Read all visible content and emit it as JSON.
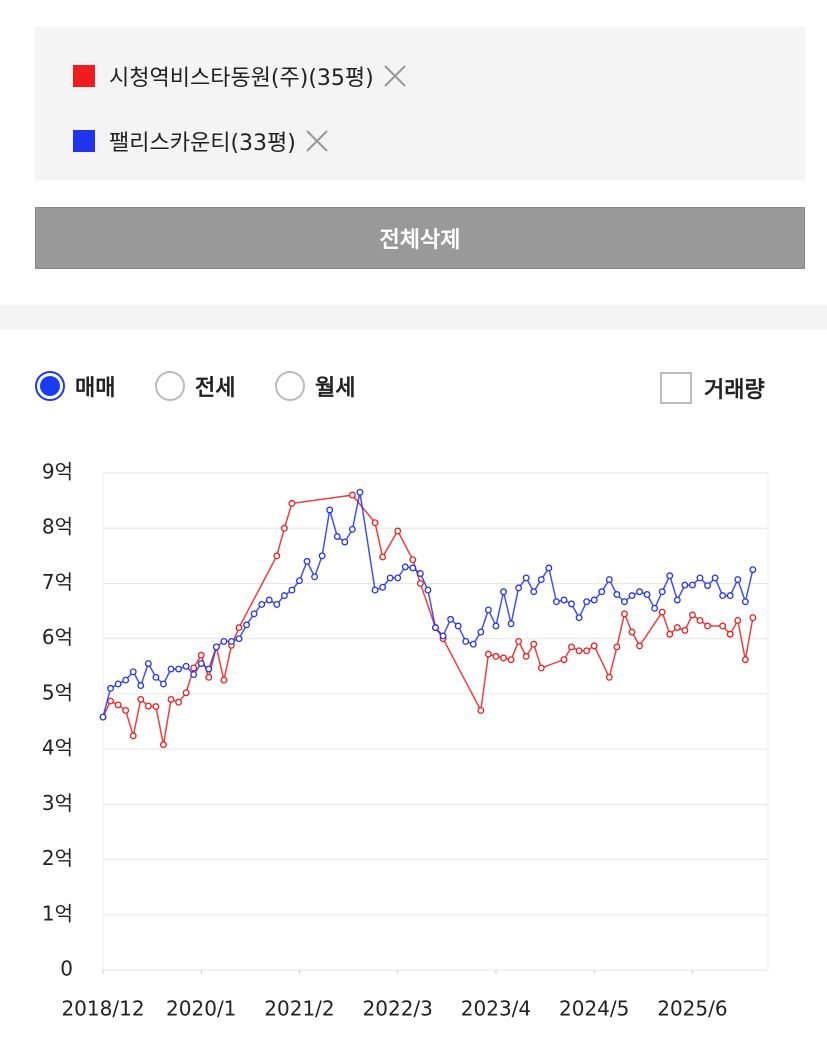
{
  "clear_button": "전체삭제",
  "trade_types": [
    {
      "label": "매매",
      "checked": true
    },
    {
      "label": "전세",
      "checked": false
    },
    {
      "label": "월세",
      "checked": false
    }
  ],
  "volume_checkbox": {
    "label": "거래량",
    "checked": false
  },
  "chart_data": {
    "type": "line",
    "grid": true,
    "xlim": [
      "2018/12",
      "2026/4"
    ],
    "xticks": [
      "2018/12",
      "2020/1",
      "2021/2",
      "2022/3",
      "2023/4",
      "2024/5",
      "2025/6"
    ],
    "ylim": [
      0,
      9
    ],
    "yticks": [
      0,
      {
        "value": 1,
        "label": "1억"
      },
      {
        "value": 2,
        "label": "2억"
      },
      {
        "value": 3,
        "label": "3억"
      },
      {
        "value": 4,
        "label": "4억"
      },
      {
        "value": 5,
        "label": "5억"
      },
      {
        "value": 6,
        "label": "6억"
      },
      {
        "value": 7,
        "label": "7억"
      },
      {
        "value": 8,
        "label": "8억"
      },
      {
        "value": 9,
        "label": "9억"
      }
    ],
    "series": [
      {
        "name": "시청역비스타동원(주)(35평)",
        "color": "#ee1c1c",
        "x": [
          "2018/12",
          "2019/1",
          "2019/2",
          "2019/3",
          "2019/4",
          "2019/5",
          "2019/6",
          "2019/7",
          "2019/8",
          "2019/9",
          "2019/10",
          "2019/11",
          "2019/12",
          "2020/1",
          "2020/2",
          "2020/3",
          "2020/4",
          "2020/5",
          "2020/6",
          "2020/11",
          "2020/12",
          "2021/1",
          "2021/9",
          "2021/12",
          "2022/1",
          "2022/3",
          "2022/5",
          "2022/6",
          "2022/8",
          "2022/9",
          "2023/2",
          "2023/3",
          "2023/4",
          "2023/5",
          "2023/6",
          "2023/7",
          "2023/8",
          "2023/9",
          "2023/10",
          "2024/1",
          "2024/2",
          "2024/3",
          "2024/4",
          "2024/5",
          "2024/7",
          "2024/8",
          "2024/9",
          "2024/10",
          "2024/11",
          "2025/2",
          "2025/3",
          "2025/4",
          "2025/5",
          "2025/6",
          "2025/7",
          "2025/8",
          "2025/10",
          "2025/11",
          "2025/12",
          "2026/1",
          "2026/2"
        ],
        "values": [
          4.58,
          4.87,
          4.8,
          4.7,
          4.24,
          4.9,
          4.78,
          4.77,
          4.08,
          4.9,
          4.85,
          5.02,
          5.47,
          5.7,
          5.3,
          5.85,
          5.25,
          5.88,
          6.2,
          7.5,
          8.0,
          8.45,
          8.6,
          8.1,
          7.48,
          7.95,
          7.43,
          7.0,
          6.2,
          6.0,
          4.7,
          5.72,
          5.68,
          5.65,
          5.62,
          5.95,
          5.68,
          5.9,
          5.47,
          5.62,
          5.85,
          5.78,
          5.78,
          5.87,
          5.3,
          5.85,
          6.45,
          6.12,
          5.87,
          6.48,
          6.08,
          6.2,
          6.15,
          6.43,
          6.33,
          6.23,
          6.23,
          6.08,
          6.33,
          5.62,
          6.38
        ]
      },
      {
        "name": "팰리스카운티(33평)",
        "color": "#2233ee",
        "x": [
          "2018/12",
          "2019/1",
          "2019/2",
          "2019/3",
          "2019/4",
          "2019/5",
          "2019/6",
          "2019/7",
          "2019/8",
          "2019/9",
          "2019/10",
          "2019/11",
          "2019/12",
          "2020/1",
          "2020/2",
          "2020/3",
          "2020/4",
          "2020/5",
          "2020/6",
          "2020/7",
          "2020/8",
          "2020/9",
          "2020/10",
          "2020/11",
          "2020/12",
          "2021/1",
          "2021/2",
          "2021/3",
          "2021/4",
          "2021/5",
          "2021/6",
          "2021/7",
          "2021/8",
          "2021/9",
          "2021/10",
          "2021/12",
          "2022/1",
          "2022/2",
          "2022/3",
          "2022/4",
          "2022/5",
          "2022/6",
          "2022/7",
          "2022/8",
          "2022/9",
          "2022/10",
          "2022/11",
          "2022/12",
          "2023/1",
          "2023/2",
          "2023/3",
          "2023/4",
          "2023/5",
          "2023/6",
          "2023/7",
          "2023/8",
          "2023/9",
          "2023/10",
          "2023/11",
          "2023/12",
          "2024/1",
          "2024/2",
          "2024/3",
          "2024/4",
          "2024/5",
          "2024/6",
          "2024/7",
          "2024/8",
          "2024/9",
          "2024/10",
          "2024/11",
          "2024/12",
          "2025/1",
          "2025/2",
          "2025/3",
          "2025/4",
          "2025/5",
          "2025/6",
          "2025/7",
          "2025/8",
          "2025/9",
          "2025/10",
          "2025/11",
          "2025/12",
          "2026/1",
          "2026/2"
        ],
        "values": [
          4.58,
          5.1,
          5.18,
          5.25,
          5.4,
          5.15,
          5.55,
          5.3,
          5.18,
          5.45,
          5.45,
          5.5,
          5.35,
          5.55,
          5.45,
          5.85,
          5.95,
          5.95,
          6.0,
          6.25,
          6.45,
          6.62,
          6.7,
          6.62,
          6.78,
          6.88,
          7.05,
          7.4,
          7.12,
          7.5,
          8.33,
          7.85,
          7.75,
          7.98,
          8.65,
          6.88,
          6.93,
          7.1,
          7.1,
          7.3,
          7.28,
          7.18,
          6.88,
          6.2,
          6.05,
          6.35,
          6.23,
          5.95,
          5.9,
          6.12,
          6.52,
          6.23,
          6.85,
          6.27,
          6.92,
          7.1,
          6.85,
          7.07,
          7.28,
          6.67,
          6.7,
          6.63,
          6.38,
          6.67,
          6.7,
          6.85,
          7.07,
          6.8,
          6.67,
          6.78,
          6.85,
          6.8,
          6.55,
          6.85,
          7.14,
          6.7,
          6.97,
          6.97,
          7.1,
          6.96,
          7.1,
          6.78,
          6.78,
          7.07,
          6.67,
          7.25
        ]
      }
    ]
  }
}
